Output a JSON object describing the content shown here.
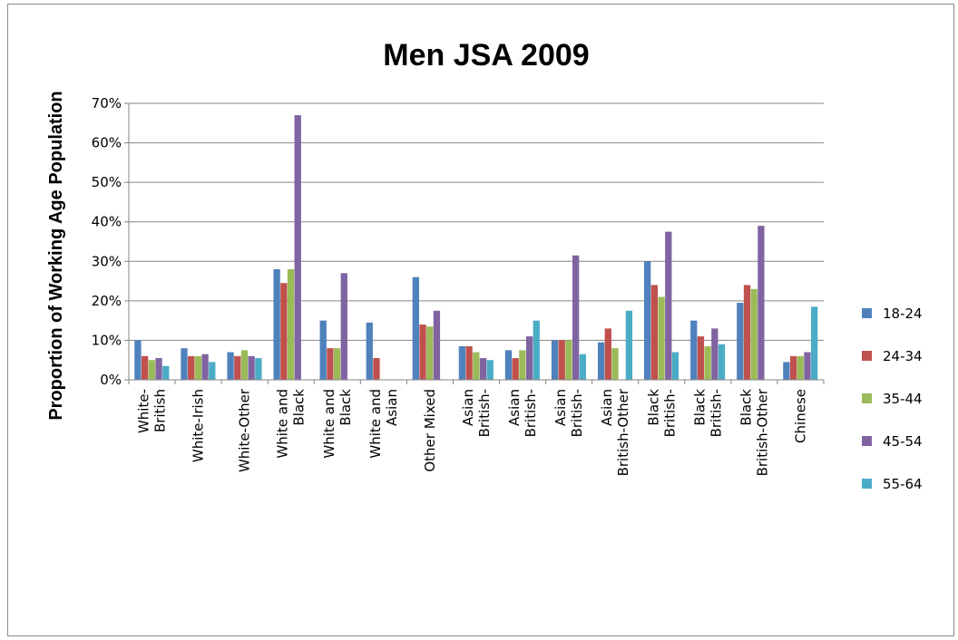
{
  "chart_data": {
    "type": "bar",
    "title": "Men JSA 2009",
    "xlabel": "",
    "ylabel": "Proportion of Working Age Population",
    "ylim": [
      0,
      70
    ],
    "yticks": [
      "0%",
      "10%",
      "20%",
      "30%",
      "40%",
      "50%",
      "60%",
      "70%"
    ],
    "grid": true,
    "legend_position": "right",
    "categories": [
      {
        "lines": [
          "White-",
          "British"
        ]
      },
      {
        "lines": [
          "White-Irish"
        ]
      },
      {
        "lines": [
          "White-Other"
        ]
      },
      {
        "lines": [
          "White and",
          "Black"
        ]
      },
      {
        "lines": [
          "White and",
          "Black"
        ]
      },
      {
        "lines": [
          "White and",
          "Asian"
        ]
      },
      {
        "lines": [
          "Other Mixed"
        ]
      },
      {
        "lines": [
          "Asian",
          "British-"
        ]
      },
      {
        "lines": [
          "Asian",
          "British-"
        ]
      },
      {
        "lines": [
          "Asian",
          "British-"
        ]
      },
      {
        "lines": [
          "Asian",
          "British-Other"
        ]
      },
      {
        "lines": [
          "Black",
          "British-"
        ]
      },
      {
        "lines": [
          "Black",
          "British-"
        ]
      },
      {
        "lines": [
          "Black",
          "British-Other"
        ]
      },
      {
        "lines": [
          "Chinese"
        ]
      }
    ],
    "series": [
      {
        "name": "18-24",
        "color": "#4f81bd",
        "values": [
          10,
          8,
          7,
          28,
          15,
          14.5,
          26,
          8.5,
          7.5,
          10,
          9.5,
          30,
          15,
          19.5,
          4.5
        ]
      },
      {
        "name": "24-34",
        "color": "#c0504d",
        "values": [
          6,
          6,
          6,
          24.5,
          8,
          5.5,
          14,
          8.5,
          5.5,
          10,
          13,
          24,
          11,
          24,
          6
        ]
      },
      {
        "name": "35-44",
        "color": "#9bbb59",
        "values": [
          5,
          6,
          7.5,
          28,
          8,
          0,
          13.5,
          7,
          7.5,
          10,
          8,
          21,
          8.5,
          23,
          6
        ]
      },
      {
        "name": "45-54",
        "color": "#8064a2",
        "values": [
          5.5,
          6.5,
          6,
          67,
          27,
          0,
          17.5,
          5.5,
          11,
          31.5,
          0,
          37.5,
          13,
          39,
          7
        ]
      },
      {
        "name": "55-64",
        "color": "#4bacc6",
        "values": [
          3.5,
          4.5,
          5.5,
          0,
          0,
          0,
          0,
          5,
          15,
          6.5,
          17.5,
          7,
          9,
          0,
          18.5
        ]
      }
    ]
  }
}
